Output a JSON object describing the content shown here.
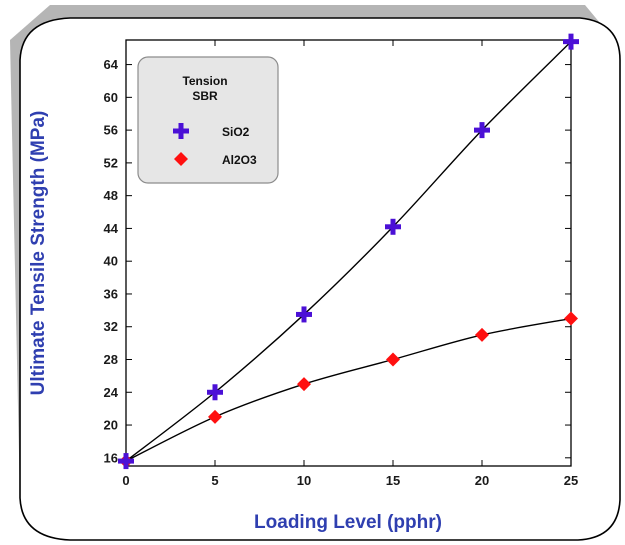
{
  "colors": {
    "frame_shadow": "#b5b5b5",
    "frame_border": "#000000",
    "axis_title": "#2f3fb0",
    "sio2": "#4b10d6",
    "al2o3": "#ff1010",
    "legend_bg": "#e6e6e6",
    "legend_border": "#8c8c8c",
    "curve": "#000000"
  },
  "chart_data": {
    "type": "line",
    "xlabel": "Loading Level (pphr)",
    "ylabel": "Ultimate Tensile Strength (MPa)",
    "xlim": [
      0,
      25
    ],
    "ylim": [
      15,
      67
    ],
    "x_ticks": [
      "0",
      "5",
      "10",
      "15",
      "20",
      "25"
    ],
    "y_ticks": [
      "16",
      "20",
      "24",
      "28",
      "32",
      "36",
      "40",
      "44",
      "48",
      "52",
      "56",
      "60",
      "64"
    ],
    "x": [
      0,
      5,
      10,
      15,
      20,
      25
    ],
    "legend": {
      "title_line1": "Tension",
      "title_line2": "SBR",
      "position": "top-left"
    },
    "series": [
      {
        "name": "SiO2",
        "marker": "plus",
        "values": [
          15.6,
          24,
          33.5,
          44.2,
          56,
          66.8
        ]
      },
      {
        "name": "Al2O3",
        "marker": "diamond",
        "values": [
          15.6,
          21,
          25,
          28,
          31,
          33
        ]
      }
    ]
  }
}
